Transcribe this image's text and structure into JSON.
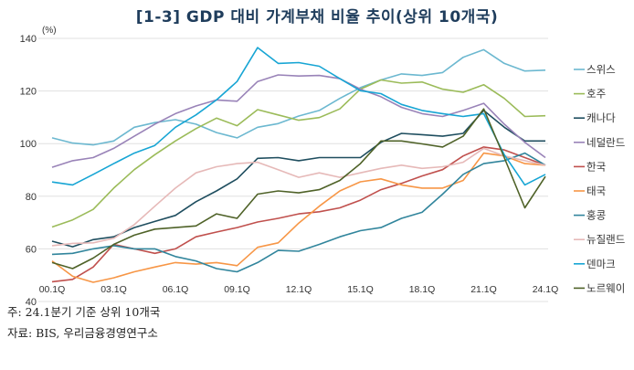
{
  "chart_data": {
    "type": "line",
    "title": "[1-3] GDP 대비 가계부채 비율 추이(상위 10개국)",
    "ylabel": "(%)",
    "xlabel": "",
    "ylim": [
      40,
      140
    ],
    "yticks": [
      40,
      60,
      80,
      100,
      120,
      140
    ],
    "grid": true,
    "legend_position": "right",
    "x": [
      "00.1Q",
      "01.1Q",
      "02.1Q",
      "03.1Q",
      "04.1Q",
      "05.1Q",
      "06.1Q",
      "07.1Q",
      "08.1Q",
      "09.1Q",
      "10.1Q",
      "11.1Q",
      "12.1Q",
      "13.1Q",
      "14.1Q",
      "15.1Q",
      "16.1Q",
      "17.1Q",
      "18.1Q",
      "19.1Q",
      "20.1Q",
      "21.1Q",
      "22.1Q",
      "23.1Q",
      "24.1Q"
    ],
    "xtick_labels": [
      "00.1Q",
      "03.1Q",
      "06.1Q",
      "09.1Q",
      "12.1Q",
      "15.1Q",
      "18.1Q",
      "21.1Q",
      "24.1Q"
    ],
    "series": [
      {
        "name": "스위스",
        "color": "#6cb8d0",
        "values": [
          102.2,
          100.2,
          99.5,
          101,
          106.2,
          108,
          109.1,
          107.4,
          104.2,
          102.2,
          106.2,
          107.6,
          110.5,
          112.6,
          117.2,
          121.3,
          124.2,
          126.5,
          125.9,
          127,
          132.8,
          135.7,
          130.5,
          127.6,
          127.9
        ]
      },
      {
        "name": "호주",
        "color": "#9bbb59",
        "values": [
          68.3,
          71,
          75,
          83.1,
          90.1,
          95.8,
          101,
          105.7,
          109.7,
          106.8,
          112.9,
          110.9,
          108.9,
          109.9,
          113.2,
          120.7,
          124.2,
          123,
          123.4,
          120.7,
          119.5,
          122.4,
          117.2,
          110.3,
          110.6
        ]
      },
      {
        "name": "캐나다",
        "color": "#1f4e5f",
        "values": [
          62.9,
          60.8,
          63.5,
          64.6,
          68.1,
          70.4,
          72.7,
          77.9,
          82,
          86.6,
          94.4,
          94.7,
          93.5,
          94.7,
          94.7,
          94.7,
          100.5,
          103.9,
          103.4,
          102.8,
          103.9,
          112.6,
          106.2,
          101,
          101
        ]
      },
      {
        "name": "네덜란드",
        "color": "#9983b8",
        "values": [
          91,
          93.5,
          94.7,
          98.2,
          102.8,
          107.4,
          111.4,
          114.3,
          116.6,
          116.1,
          123.6,
          126.1,
          125.7,
          125.9,
          124.7,
          120.7,
          117.8,
          113.8,
          111.4,
          110.3,
          112.6,
          115.3,
          107.4,
          100.5,
          94.7
        ]
      },
      {
        "name": "한국",
        "color": "#c0504d",
        "values": [
          47.5,
          48.4,
          53.1,
          61.7,
          60,
          58.3,
          60,
          64.6,
          66.4,
          68.1,
          70.2,
          71.6,
          73.3,
          74.1,
          75.6,
          78.5,
          82.5,
          84.9,
          87.7,
          90.1,
          95.3,
          98.7,
          97.6,
          94.7,
          91.8
        ]
      },
      {
        "name": "태국",
        "color": "#f79646",
        "values": [
          55.4,
          49.6,
          47.3,
          49,
          51.3,
          53.1,
          54.8,
          54.2,
          54.8,
          53.6,
          60.6,
          62.3,
          69.8,
          76.2,
          82,
          85.5,
          86.6,
          84.3,
          83.1,
          83.1,
          86,
          96.4,
          95.3,
          92.4,
          91.8
        ]
      },
      {
        "name": "홍콩",
        "color": "#31859c",
        "values": [
          57.9,
          58.3,
          60,
          61.2,
          60,
          60,
          57.1,
          55.4,
          52.5,
          51.3,
          54.8,
          59.4,
          59.1,
          61.7,
          64.6,
          66.9,
          68.1,
          71.6,
          73.9,
          80.8,
          88.3,
          92.4,
          93.5,
          96.4,
          91.8
        ]
      },
      {
        "name": "뉴질랜드",
        "color": "#e6b9b8",
        "values": [
          61.2,
          62.1,
          62.3,
          64,
          69.2,
          76.2,
          83.1,
          88.9,
          91.2,
          92.4,
          92.9,
          90.1,
          87.2,
          88.9,
          87.2,
          88.9,
          90.6,
          91.8,
          90.6,
          91.2,
          92.9,
          98.2,
          95.3,
          93.5,
          91.8
        ]
      },
      {
        "name": "덴마크",
        "color": "#17a5d4",
        "values": [
          85.4,
          84.3,
          88.3,
          92.4,
          96.4,
          99.3,
          106.2,
          110.9,
          116.6,
          123.6,
          136.5,
          130.5,
          130.8,
          129.4,
          124.7,
          120.1,
          119,
          114.9,
          112.6,
          111.4,
          110.3,
          111.4,
          95.8,
          84.3,
          88.3
        ]
      },
      {
        "name": "노르웨이",
        "color": "#4f6228",
        "values": [
          54.8,
          52.5,
          56.5,
          61.7,
          65.2,
          67.5,
          68.1,
          68.7,
          73.3,
          71.6,
          80.8,
          82,
          81.3,
          82.5,
          86,
          92.4,
          101,
          101,
          99.9,
          98.7,
          102.8,
          113.2,
          94.7,
          75.6,
          87.5
        ]
      }
    ]
  },
  "notes": {
    "note": "주: 24.1분기 기준 상위 10개국",
    "source": "자료: BIS, 우리금융경영연구소"
  }
}
